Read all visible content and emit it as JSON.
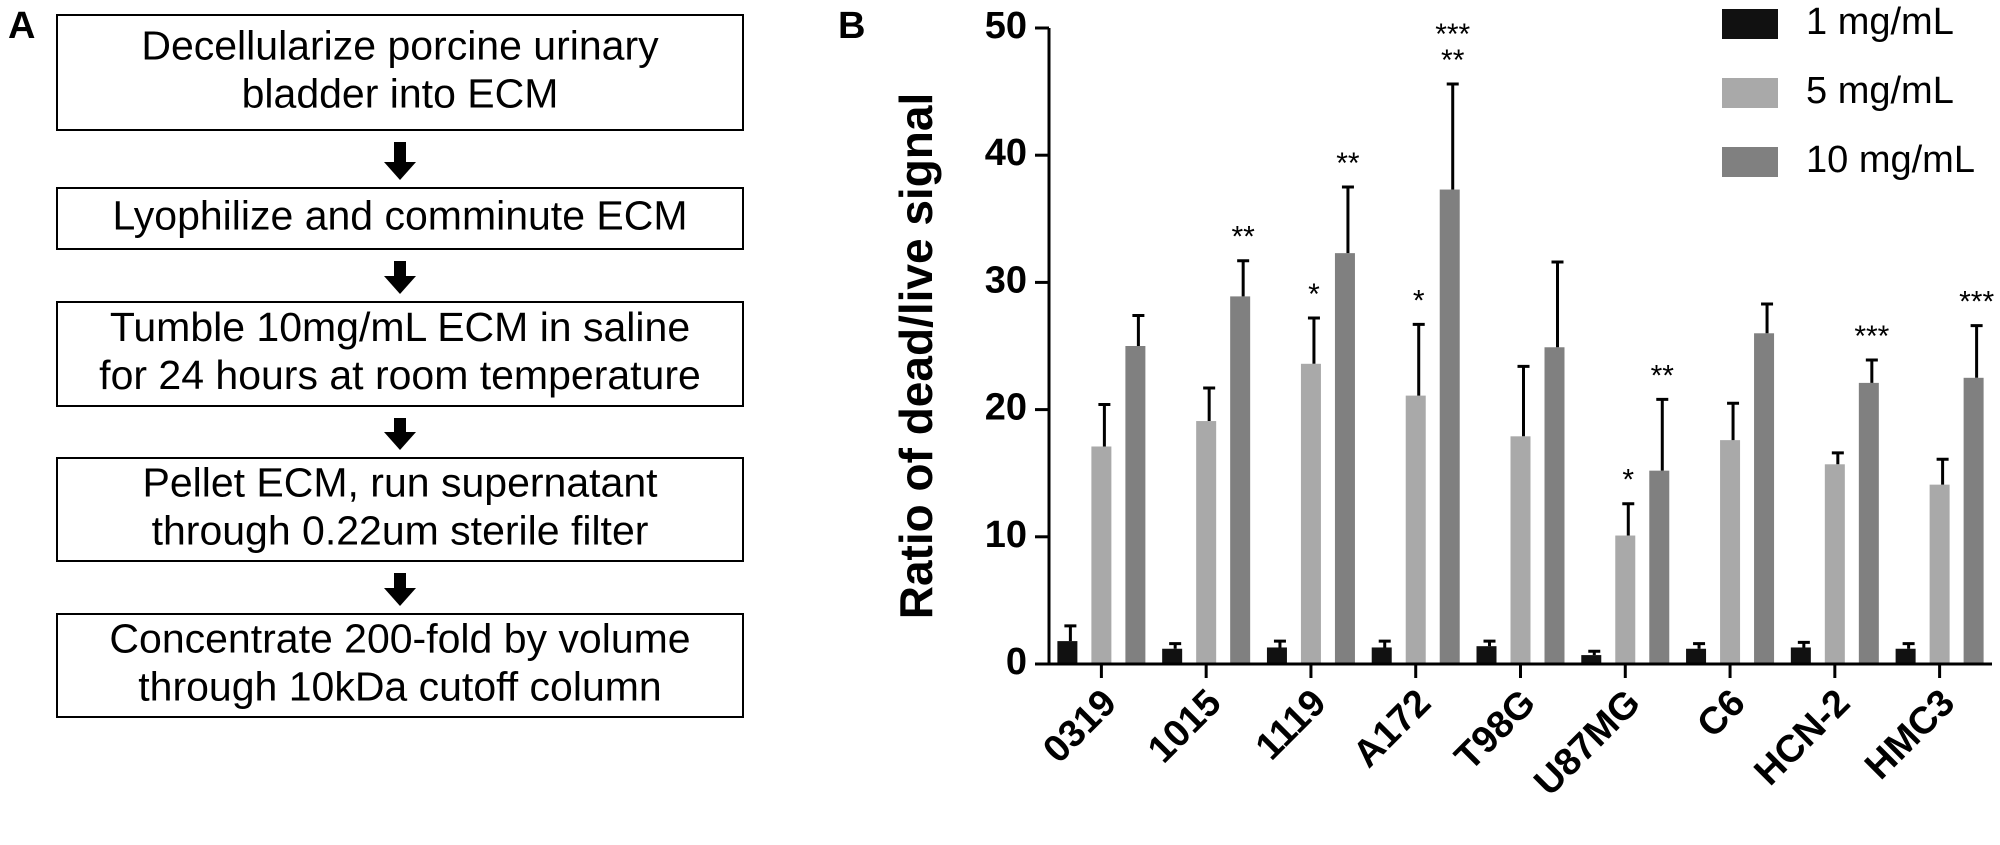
{
  "panel_labels": [
    "A",
    "B"
  ],
  "flowchart": {
    "steps": [
      {
        "lines": [
          "Decellularize porcine urinary",
          "bladder into ECM"
        ]
      },
      {
        "lines": [
          "Lyophilize and comminute ECM"
        ]
      },
      {
        "lines": [
          "Tumble 10mg/mL ECM in saline",
          "for 24 hours at room temperature"
        ]
      },
      {
        "lines": [
          "Pellet ECM, run supernatant",
          "through 0.22um sterile filter"
        ]
      },
      {
        "lines": [
          "Concentrate 200-fold by volume",
          "through 10kDa cutoff column"
        ]
      }
    ]
  },
  "chart_data": {
    "type": "bar",
    "y_label": "Ratio of dead/live signal",
    "categories": [
      "0319",
      "1015",
      "1119",
      "A172",
      "T98G",
      "U87MG",
      "C6",
      "HCN-2",
      "HMC3"
    ],
    "ylim": [
      0,
      50
    ],
    "yticks": [
      0,
      10,
      20,
      30,
      40,
      50
    ],
    "legend": "top-right",
    "series": [
      {
        "name": "1 mg/mL",
        "color": "#111111",
        "values": [
          1.8,
          1.2,
          1.3,
          1.3,
          1.4,
          0.7,
          1.2,
          1.3,
          1.2
        ],
        "errors": [
          1.2,
          0.4,
          0.5,
          0.5,
          0.4,
          0.3,
          0.4,
          0.4,
          0.4
        ],
        "significance": [
          null,
          null,
          null,
          null,
          null,
          null,
          null,
          null,
          null
        ]
      },
      {
        "name": "5 mg/mL",
        "color": "#a9a9a9",
        "values": [
          17.1,
          19.1,
          23.6,
          21.1,
          17.9,
          10.1,
          17.6,
          15.7,
          14.1
        ],
        "errors": [
          3.3,
          2.6,
          3.6,
          5.6,
          5.5,
          2.5,
          2.9,
          0.9,
          2.0
        ],
        "significance": [
          null,
          null,
          [
            "*"
          ],
          [
            "*"
          ],
          null,
          [
            "*"
          ],
          null,
          null,
          null
        ]
      },
      {
        "name": "10 mg/mL",
        "color": "#808080",
        "values": [
          25.0,
          28.9,
          32.3,
          37.3,
          24.9,
          15.2,
          26.0,
          22.1,
          22.5
        ],
        "errors": [
          2.4,
          2.8,
          5.2,
          8.3,
          6.7,
          5.6,
          2.3,
          1.8,
          4.1
        ],
        "significance": [
          null,
          [
            "**"
          ],
          [
            "**"
          ],
          [
            "***",
            "**"
          ],
          null,
          [
            "**"
          ],
          null,
          [
            "***"
          ],
          [
            "***"
          ]
        ]
      }
    ]
  }
}
